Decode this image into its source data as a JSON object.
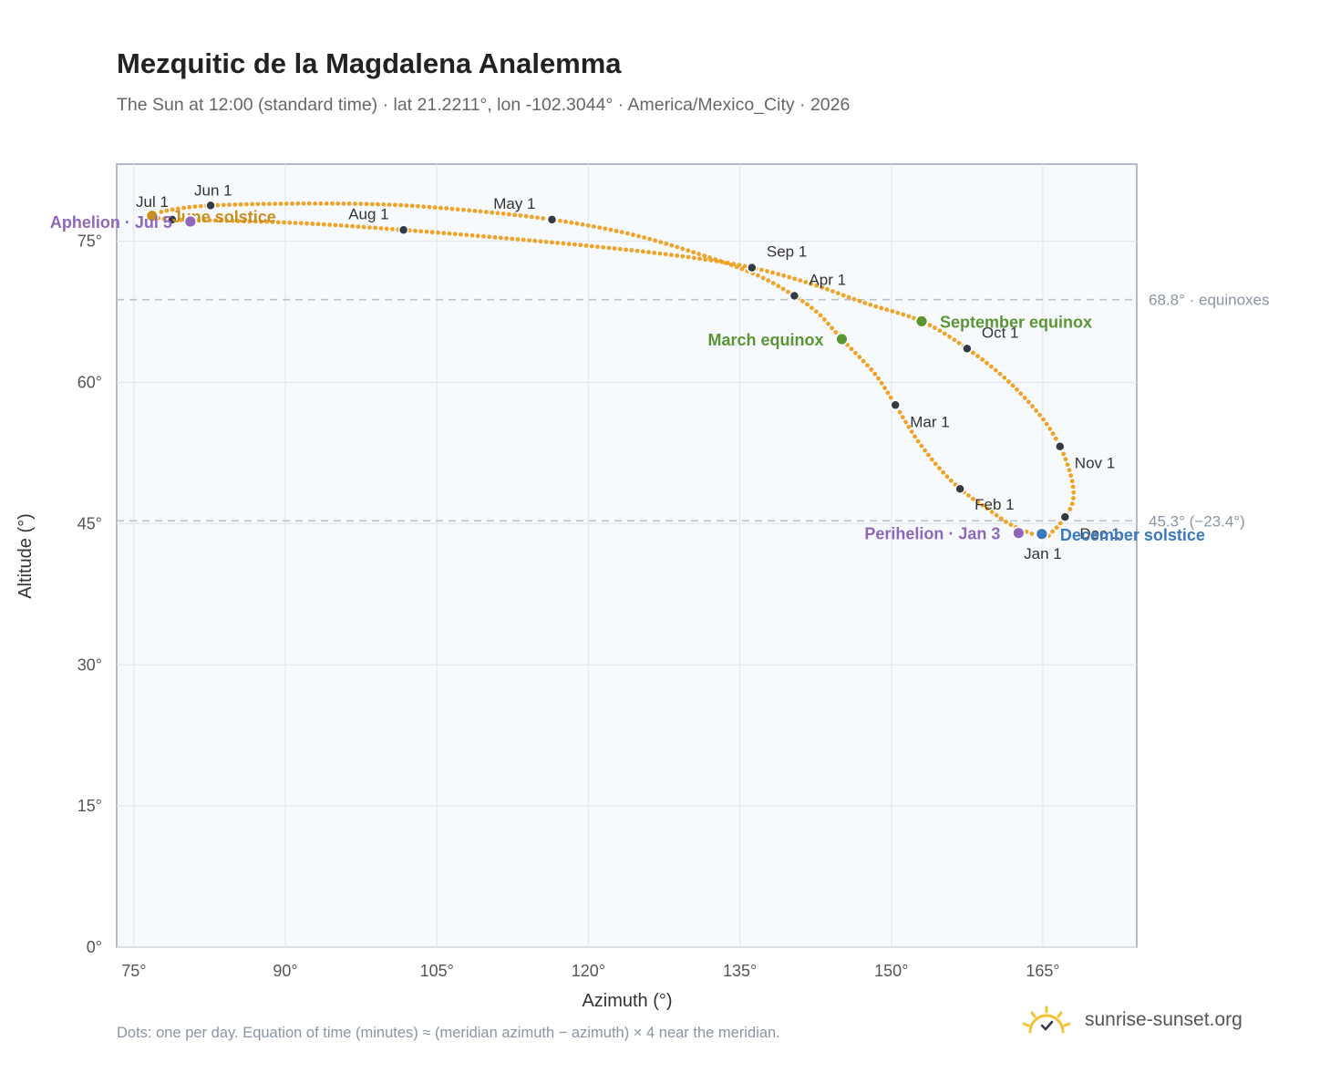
{
  "title": "Mezquitic de la Magdalena Analemma",
  "subtitle": "The Sun at 12:00 (standard time) · lat 21.2211°, lon -102.3044° · America/Mexico_City · 2026",
  "footnote": "Dots: one per day. Equation of time (minutes) ≈ (meridian azimuth − azimuth) × 4 near the meridian.",
  "brand": {
    "text": "sunrise-sunset.org",
    "icon": "sun-logo-icon"
  },
  "colors": {
    "curve": "#f0a326",
    "month_dot": "#333a44",
    "equinox": "#5a9634",
    "aphelion": "#8e67b8",
    "june_solstice": "#c98f1f",
    "december_solstice": "#3a78c0",
    "plot_bg": "#f7fafd",
    "grid": "#e2e8ef",
    "reference_line": "#b8c2cc"
  },
  "chart_data": {
    "type": "scatter",
    "xlabel": "Azimuth (°)",
    "ylabel": "Altitude (°)",
    "xlim": [
      73.3,
      174.3
    ],
    "ylim": [
      0,
      83.2
    ],
    "x_ticks": [
      75,
      90,
      105,
      120,
      135,
      150,
      165
    ],
    "y_ticks": [
      0,
      15,
      30,
      45,
      60,
      75
    ],
    "x_tick_labels": [
      "75°",
      "90°",
      "105°",
      "120°",
      "135°",
      "150°",
      "165°"
    ],
    "y_tick_labels": [
      "0°",
      "15°",
      "30°",
      "45°",
      "60°",
      "75°"
    ],
    "grid": true,
    "reference_lines": [
      {
        "y": 68.8,
        "label": "68.8° · equinoxes"
      },
      {
        "y": 45.3,
        "label": "45.3° (−23.4°)"
      }
    ],
    "month_markers": [
      {
        "label": "Jan 1",
        "az": 165.0,
        "alt": 43.6
      },
      {
        "label": "Feb 1",
        "az": 156.8,
        "alt": 48.7
      },
      {
        "label": "Mar 1",
        "az": 150.4,
        "alt": 57.6
      },
      {
        "label": "Apr 1",
        "az": 140.4,
        "alt": 69.2
      },
      {
        "label": "May 1",
        "az": 116.4,
        "alt": 77.3
      },
      {
        "label": "Jun 1",
        "az": 82.6,
        "alt": 78.8
      },
      {
        "label": "Jul 1",
        "az": 78.8,
        "alt": 77.3
      },
      {
        "label": "Aug 1",
        "az": 101.7,
        "alt": 76.2
      },
      {
        "label": "Sep 1",
        "az": 136.2,
        "alt": 72.2
      },
      {
        "label": "Oct 1",
        "az": 157.5,
        "alt": 63.6
      },
      {
        "label": "Nov 1",
        "az": 166.7,
        "alt": 53.2
      },
      {
        "label": "Dec 1",
        "az": 167.2,
        "alt": 45.7
      }
    ],
    "events": [
      {
        "label": "June solstice",
        "az": 76.8,
        "alt": 77.7,
        "color_key": "june_solstice"
      },
      {
        "label": "Aphelion · Jul 5",
        "az": 80.6,
        "alt": 77.1,
        "color_key": "aphelion"
      },
      {
        "label": "March equinox",
        "az": 145.1,
        "alt": 64.6,
        "color_key": "equinox"
      },
      {
        "label": "September equinox",
        "az": 153.0,
        "alt": 66.5,
        "color_key": "equinox"
      },
      {
        "label": "Perihelion · Jan 3",
        "az": 162.6,
        "alt": 44.0,
        "color_key": "aphelion"
      },
      {
        "label": "December solstice",
        "az": 164.9,
        "alt": 43.9,
        "color_key": "december_solstice"
      }
    ],
    "curve_points": [
      [
        165.0,
        43.6
      ],
      [
        162.0,
        44.8
      ],
      [
        159.5,
        46.6
      ],
      [
        156.8,
        48.7
      ],
      [
        154.5,
        51.2
      ],
      [
        152.3,
        54.3
      ],
      [
        150.4,
        57.6
      ],
      [
        148.3,
        61.0
      ],
      [
        145.1,
        64.6
      ],
      [
        142.8,
        67.3
      ],
      [
        140.4,
        69.2
      ],
      [
        136.5,
        71.5
      ],
      [
        130.5,
        73.8
      ],
      [
        124.0,
        75.8
      ],
      [
        116.4,
        77.3
      ],
      [
        108.0,
        78.3
      ],
      [
        100.0,
        78.9
      ],
      [
        91.0,
        79.0
      ],
      [
        82.6,
        78.8
      ],
      [
        78.5,
        78.3
      ],
      [
        76.8,
        77.7
      ],
      [
        78.8,
        77.3
      ],
      [
        83.5,
        77.2
      ],
      [
        92.0,
        76.9
      ],
      [
        101.7,
        76.2
      ],
      [
        112.0,
        75.3
      ],
      [
        122.0,
        74.3
      ],
      [
        130.0,
        73.3
      ],
      [
        136.2,
        72.2
      ],
      [
        142.0,
        70.5
      ],
      [
        147.5,
        68.4
      ],
      [
        153.0,
        66.5
      ],
      [
        157.5,
        63.6
      ],
      [
        161.5,
        60.2
      ],
      [
        164.8,
        56.4
      ],
      [
        166.7,
        53.2
      ],
      [
        167.8,
        50.0
      ],
      [
        168.0,
        47.5
      ],
      [
        167.2,
        45.7
      ],
      [
        166.0,
        44.2
      ],
      [
        165.0,
        43.6
      ]
    ]
  }
}
